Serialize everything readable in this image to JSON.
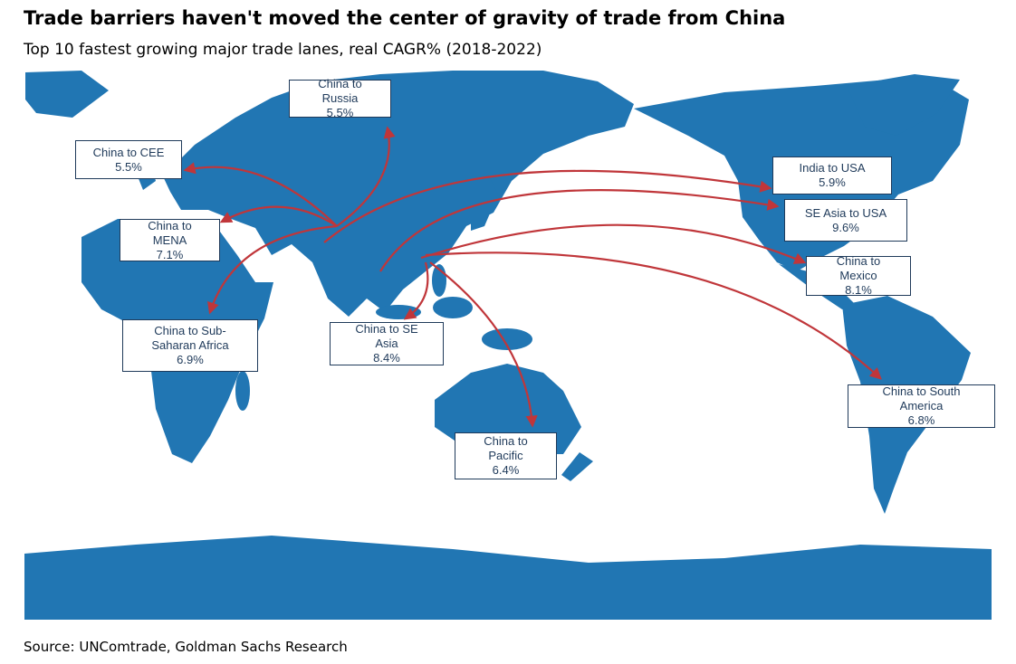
{
  "header": {
    "title": "Trade barriers haven't moved the center of gravity of trade from China",
    "subtitle": "Top 10 fastest growing major trade lanes, real CAGR% (2018-2022)"
  },
  "lanes": [
    {
      "label": "China to Russia",
      "value": "5.5%"
    },
    {
      "label": "China to CEE",
      "value": "5.5%"
    },
    {
      "label": "China to MENA",
      "value": "7.1%"
    },
    {
      "label": "China to Sub-Saharan Africa",
      "value": "6.9%"
    },
    {
      "label": "China to SE Asia",
      "value": "8.4%"
    },
    {
      "label": "China to Pacific",
      "value": "6.4%"
    },
    {
      "label": "India to USA",
      "value": "5.9%"
    },
    {
      "label": "SE Asia to USA",
      "value": "9.6%"
    },
    {
      "label": "China to Mexico",
      "value": "8.1%"
    },
    {
      "label": "China to South America",
      "value": "6.8%"
    }
  ],
  "footer": {
    "source": "Source: UNComtrade, Goldman Sachs Research"
  }
}
